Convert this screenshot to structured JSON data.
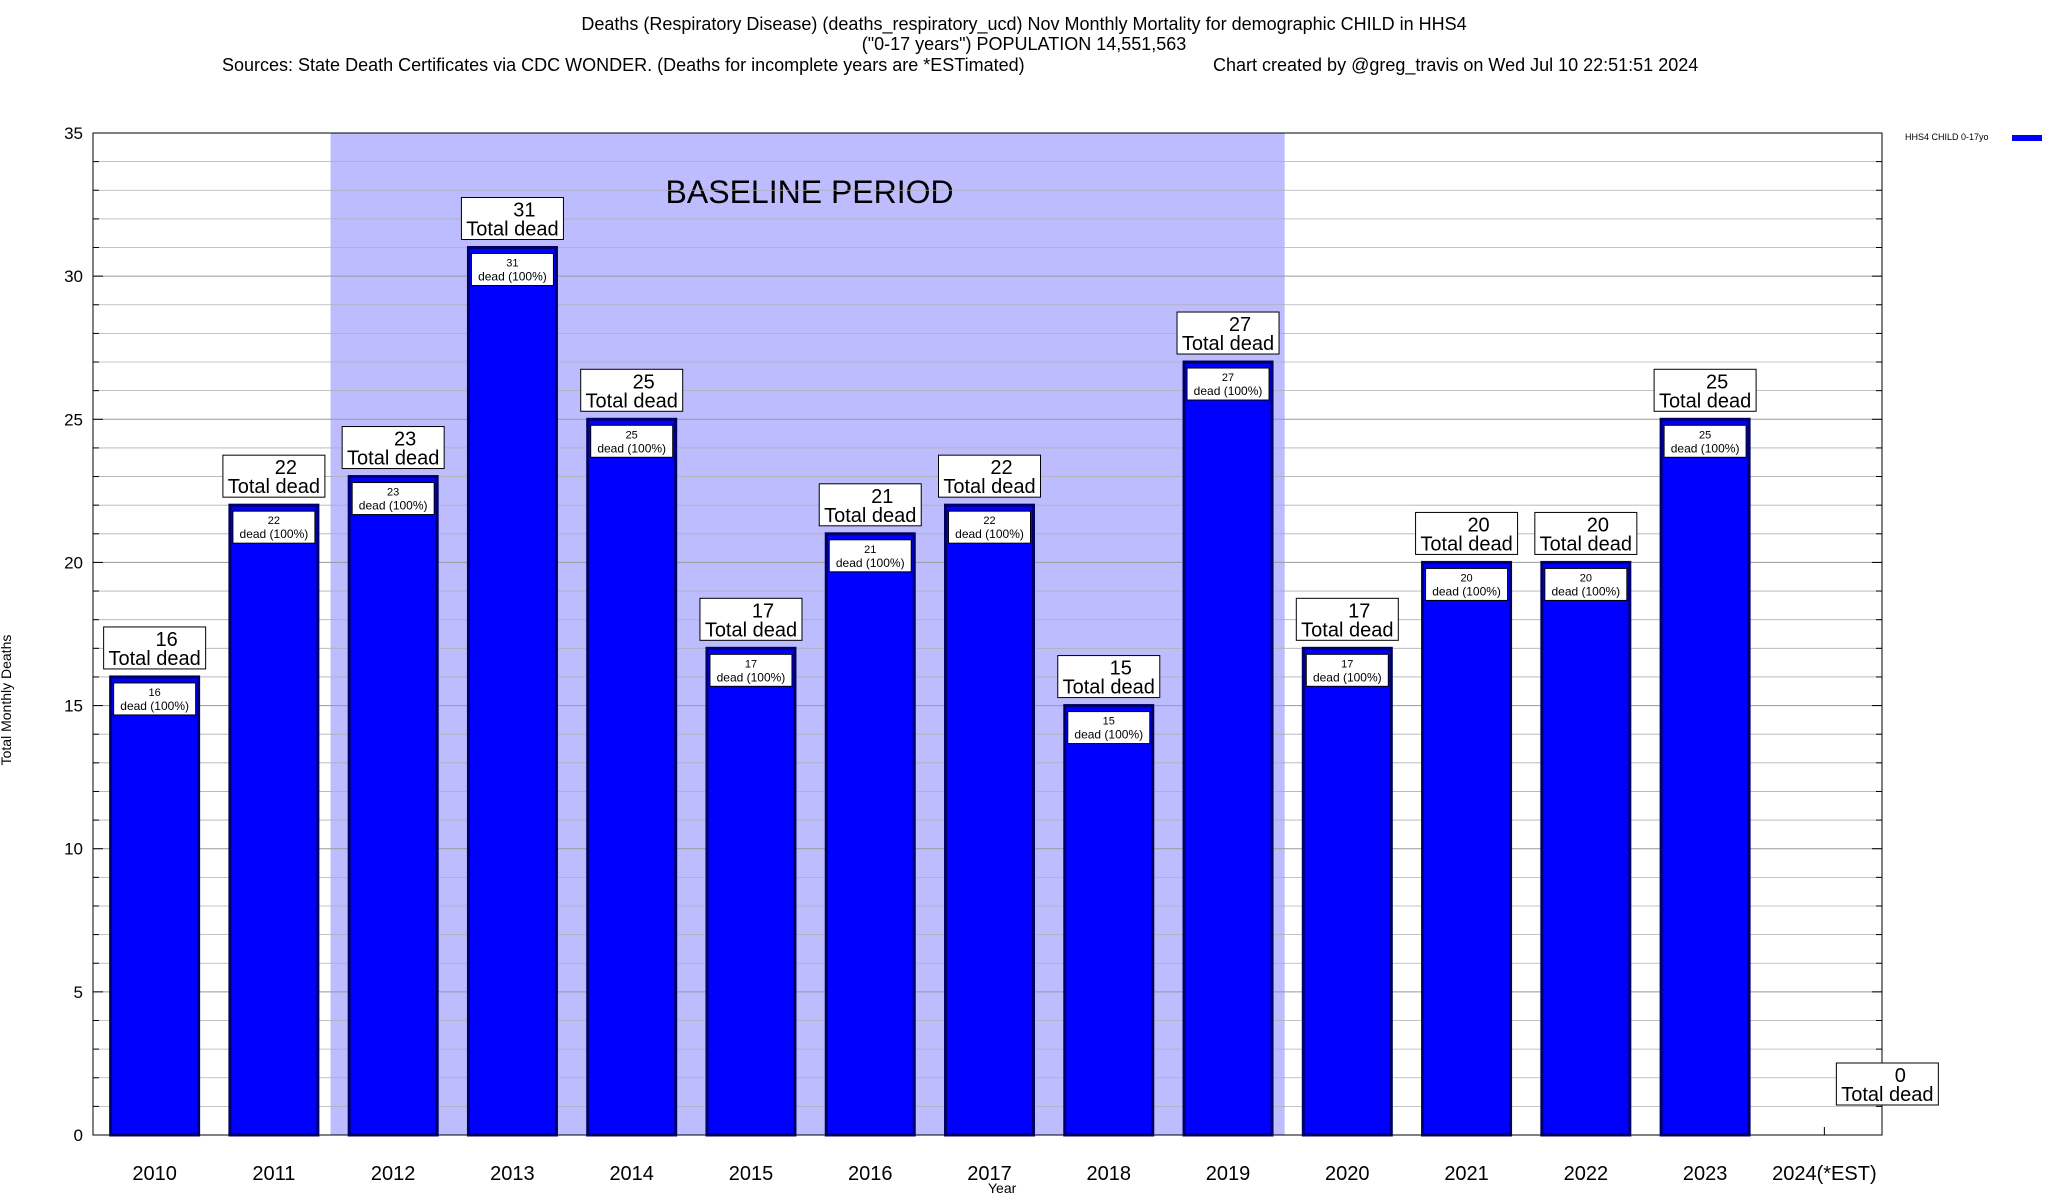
{
  "title": {
    "line1": "Deaths (Respiratory Disease) (deaths_respiratory_ucd) Nov Monthly Mortality for demographic CHILD in HHS4",
    "line2": "(\"0-17 years\") POPULATION 14,551,563",
    "sources": "Sources: State Death Certificates via CDC WONDER. (Deaths for incomplete years are *ESTimated)",
    "credit": "Chart created by @greg_travis on Wed Jul 10 22:51:51 2024"
  },
  "chart_data": {
    "type": "bar",
    "categories": [
      "2010",
      "2011",
      "2012",
      "2013",
      "2014",
      "2015",
      "2016",
      "2017",
      "2018",
      "2019",
      "2020",
      "2021",
      "2022",
      "2023",
      "2024(*EST)"
    ],
    "series": [
      {
        "name": "HHS4 CHILD 0-17yo",
        "values": [
          16,
          22,
          23,
          31,
          25,
          17,
          21,
          22,
          15,
          27,
          17,
          20,
          20,
          25,
          0
        ]
      }
    ],
    "total_label": "Total dead",
    "inner_label": "dead (100%)",
    "baseline_label": "BASELINE PERIOD",
    "baseline_range": [
      "2012",
      "2019"
    ],
    "xlabel": "Year",
    "ylabel": "Total Monthly Deaths",
    "ylim": [
      0,
      35
    ],
    "yticks": [
      0,
      5,
      10,
      15,
      20,
      25,
      30,
      35
    ],
    "grid": true,
    "legend_position": "top-right",
    "colors": {
      "bar": "#0000ff",
      "bar_border": "#000066",
      "baseline": "#bcbcff",
      "grid": "#b0b0b0"
    }
  }
}
